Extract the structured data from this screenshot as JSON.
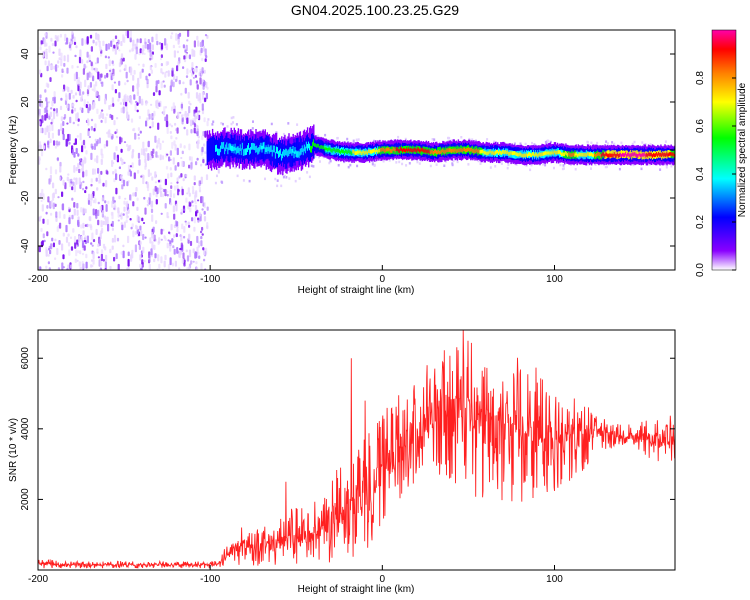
{
  "page": {
    "title": "GN04.2025.100.23.25.G29"
  },
  "chart_data": [
    {
      "type": "heatmap",
      "title": "GN04.2025.100.23.25.G29",
      "xlabel": "Height of straight line (km)",
      "ylabel": "Frequency (Hz)",
      "xlim": [
        -200,
        170
      ],
      "ylim": [
        -50,
        50
      ],
      "xticks": [
        -200,
        -100,
        0,
        100
      ],
      "yticks": [
        -40,
        -20,
        0,
        20,
        40
      ],
      "grid": false,
      "colorbar": {
        "label": "Normalized spectral amplitude",
        "range": [
          0,
          1
        ],
        "ticks": [
          0.0,
          0.2,
          0.4,
          0.6,
          0.8
        ],
        "colors": [
          "#ffffff",
          "#8a00ff",
          "#0000ff",
          "#00ffff",
          "#00ff00",
          "#ffff00",
          "#ff8000",
          "#ff0000",
          "#ff00aa"
        ]
      },
      "regions": [
        {
          "name": "noise",
          "x_range": [
            -200,
            -102
          ],
          "freq_range": [
            -50,
            50
          ],
          "amplitude": 0.15
        },
        {
          "name": "signal",
          "x_range": [
            -102,
            170
          ],
          "amplitude_range": [
            0.2,
            1.0
          ]
        }
      ],
      "ridge": {
        "x": [
          -100,
          -90,
          -80,
          -70,
          -60,
          -50,
          -40,
          -30,
          -20,
          -10,
          0,
          10,
          20,
          30,
          40,
          50,
          60,
          70,
          80,
          90,
          100,
          110,
          120,
          130,
          140,
          150,
          160,
          170
        ],
        "frequency": [
          0,
          1,
          0,
          1,
          -2,
          -1,
          2,
          0,
          -1,
          -1,
          0,
          0,
          0,
          -1,
          0,
          0,
          -1,
          -1,
          -2,
          -2,
          -1,
          -2,
          -2,
          -2,
          -2,
          -2,
          -2,
          -2
        ],
        "amplitude": [
          0.3,
          0.35,
          0.35,
          0.4,
          0.4,
          0.4,
          0.45,
          0.5,
          0.55,
          0.6,
          0.7,
          0.85,
          0.85,
          0.8,
          0.7,
          0.75,
          0.65,
          0.6,
          0.6,
          0.6,
          0.65,
          0.7,
          0.6,
          0.9,
          0.95,
          0.95,
          0.9,
          0.85
        ]
      }
    },
    {
      "type": "line",
      "xlabel": "Height of straight line (km)",
      "ylabel": "SNR (10 * v/v)",
      "xlim": [
        -200,
        170
      ],
      "ylim": [
        0,
        6800
      ],
      "xticks": [
        -200,
        -100,
        0,
        100
      ],
      "yticks": [
        2000,
        4000,
        6000
      ],
      "grid": false,
      "series_color": "#ff0000",
      "envelope": {
        "x": [
          -200,
          -180,
          -160,
          -140,
          -120,
          -100,
          -95,
          -90,
          -85,
          -80,
          -75,
          -70,
          -65,
          -60,
          -55,
          -50,
          -45,
          -40,
          -35,
          -30,
          -25,
          -20,
          -15,
          -10,
          -5,
          0,
          5,
          10,
          15,
          20,
          25,
          30,
          35,
          40,
          45,
          50,
          55,
          60,
          65,
          70,
          75,
          80,
          85,
          90,
          95,
          100,
          105,
          110,
          115,
          120,
          125,
          130,
          140,
          150,
          160,
          170
        ],
        "low": [
          50,
          50,
          50,
          50,
          50,
          50,
          80,
          100,
          120,
          100,
          100,
          100,
          100,
          100,
          100,
          100,
          150,
          200,
          150,
          150,
          200,
          400,
          300,
          500,
          900,
          1200,
          1500,
          1800,
          2000,
          2300,
          2400,
          2600,
          2500,
          2500,
          2400,
          2200,
          2000,
          2000,
          1800,
          2000,
          1900,
          1800,
          1800,
          2000,
          2000,
          2200,
          2400,
          2500,
          2700,
          3000,
          3300,
          3400,
          3500,
          3300,
          3000,
          3000
        ],
        "high": [
          300,
          250,
          250,
          250,
          250,
          250,
          300,
          800,
          1100,
          1300,
          1200,
          1200,
          1300,
          1500,
          1700,
          1800,
          1800,
          1900,
          2500,
          2800,
          3000,
          3300,
          3700,
          4000,
          4300,
          4500,
          4700,
          5000,
          5300,
          5600,
          5800,
          6000,
          6200,
          6400,
          6600,
          6700,
          6400,
          6200,
          6100,
          6000,
          6200,
          6000,
          5800,
          5800,
          5600,
          5400,
          5200,
          5000,
          4800,
          4700,
          4500,
          4300,
          4100,
          4200,
          4300,
          4400
        ]
      },
      "spikes": [
        {
          "x": -56,
          "value": 2500
        },
        {
          "x": -18,
          "value": 6000
        },
        {
          "x": -10,
          "value": 4800
        },
        {
          "x": 47,
          "value": 6800
        }
      ]
    }
  ]
}
